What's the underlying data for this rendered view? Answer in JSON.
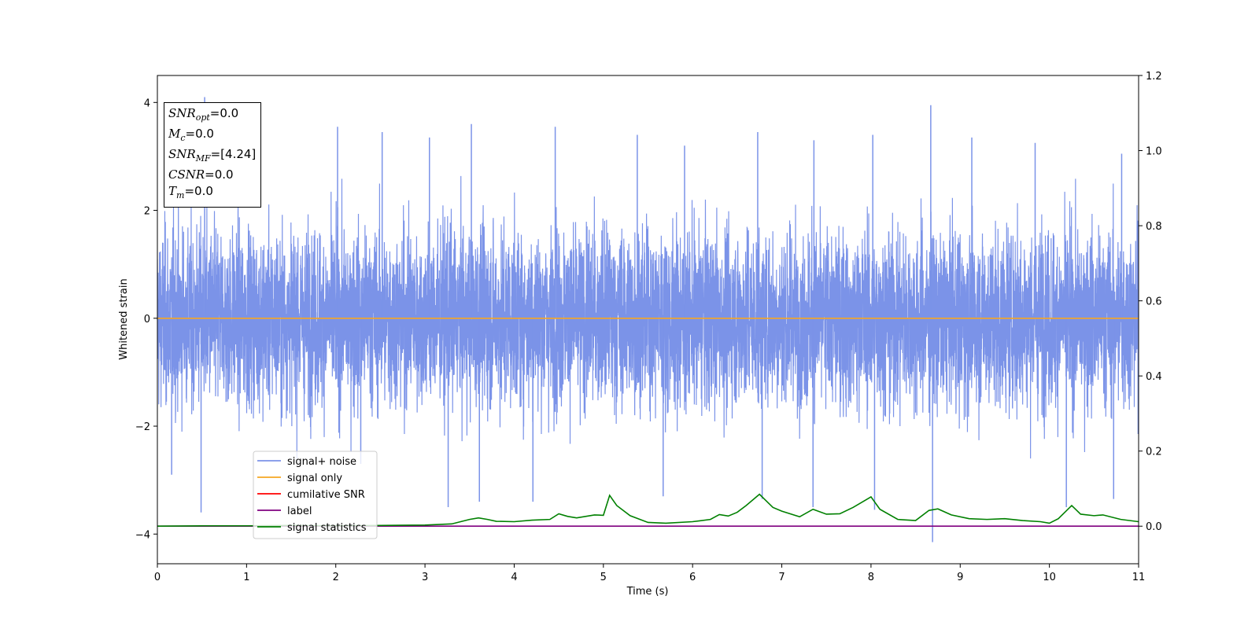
{
  "chart_data": {
    "type": "line",
    "xlabel": "Time (s)",
    "ylabel": "Whitened strain",
    "xlim": [
      0,
      11
    ],
    "ylim": [
      -4.55,
      4.5
    ],
    "y2lim": [
      -0.1,
      1.2
    ],
    "x_ticks": [
      "0",
      "1",
      "2",
      "3",
      "4",
      "5",
      "6",
      "7",
      "8",
      "9",
      "10",
      "11"
    ],
    "y_ticks": [
      "4",
      "2",
      "0",
      "−2",
      "−4"
    ],
    "y2_ticks": [
      "1.2",
      "1.0",
      "0.8",
      "0.6",
      "0.4",
      "0.2",
      "0.0"
    ],
    "grid": false,
    "legend_position": "lower-left",
    "info_box": {
      "snr_opt": {
        "symbol": "SNR",
        "sub": "opt",
        "value": "=0.0"
      },
      "mc": {
        "symbol": "M",
        "sub": "c",
        "value": "=0.0"
      },
      "snr_mf": {
        "symbol": "SNR",
        "sub": "MF",
        "value": "=[4.24]"
      },
      "csnr": {
        "symbol": "CSNR",
        "value": "=0.0"
      },
      "tm": {
        "symbol": "T",
        "sub": "m",
        "value": "=0.0"
      }
    },
    "series": [
      {
        "name": "signal+ noise",
        "color": "#7b93e8",
        "axis": "left",
        "noise_sigma": 0.82,
        "spikes": [
          [
            0.49,
            -3.6
          ],
          [
            0.53,
            4.1
          ],
          [
            0.16,
            -2.9
          ],
          [
            2.02,
            3.55
          ],
          [
            2.28,
            -2.7
          ],
          [
            2.52,
            3.45
          ],
          [
            3.05,
            3.35
          ],
          [
            3.26,
            -3.5
          ],
          [
            3.52,
            3.6
          ],
          [
            3.61,
            -3.4
          ],
          [
            4.21,
            -3.4
          ],
          [
            4.46,
            3.55
          ],
          [
            5.38,
            3.4
          ],
          [
            5.67,
            -3.3
          ],
          [
            5.91,
            3.2
          ],
          [
            6.73,
            3.45
          ],
          [
            6.78,
            -3.35
          ],
          [
            7.36,
            3.3
          ],
          [
            7.35,
            -3.5
          ],
          [
            8.02,
            3.4
          ],
          [
            8.04,
            -3.55
          ],
          [
            8.67,
            3.95
          ],
          [
            8.69,
            -4.15
          ],
          [
            9.13,
            3.35
          ],
          [
            9.84,
            3.25
          ],
          [
            10.19,
            -3.5
          ],
          [
            10.72,
            -3.35
          ],
          [
            10.81,
            3.05
          ]
        ]
      },
      {
        "name": "signal only",
        "color": "#f5a623",
        "axis": "left",
        "values": [
          [
            0,
            0
          ],
          [
            11,
            0
          ]
        ]
      },
      {
        "name": "cumilative SNR",
        "color": "#ff0000",
        "axis": "right",
        "values": []
      },
      {
        "name": "label",
        "color": "#800080",
        "axis": "right",
        "values": [
          [
            0,
            0.0
          ],
          [
            11,
            0.0
          ]
        ]
      },
      {
        "name": "signal statistics",
        "color": "#008000",
        "axis": "right",
        "values": [
          [
            0,
            0.0
          ],
          [
            0.5,
            0.001
          ],
          [
            1.0,
            0.001
          ],
          [
            1.5,
            0.002
          ],
          [
            2.0,
            0.001
          ],
          [
            2.5,
            0.002
          ],
          [
            3.0,
            0.003
          ],
          [
            3.3,
            0.006
          ],
          [
            3.5,
            0.018
          ],
          [
            3.6,
            0.022
          ],
          [
            3.7,
            0.018
          ],
          [
            3.8,
            0.013
          ],
          [
            4.0,
            0.012
          ],
          [
            4.2,
            0.016
          ],
          [
            4.4,
            0.018
          ],
          [
            4.5,
            0.033
          ],
          [
            4.6,
            0.026
          ],
          [
            4.7,
            0.022
          ],
          [
            4.9,
            0.03
          ],
          [
            5.0,
            0.029
          ],
          [
            5.07,
            0.082
          ],
          [
            5.15,
            0.055
          ],
          [
            5.3,
            0.028
          ],
          [
            5.5,
            0.01
          ],
          [
            5.7,
            0.008
          ],
          [
            6.0,
            0.012
          ],
          [
            6.2,
            0.018
          ],
          [
            6.3,
            0.031
          ],
          [
            6.4,
            0.027
          ],
          [
            6.5,
            0.037
          ],
          [
            6.6,
            0.055
          ],
          [
            6.75,
            0.085
          ],
          [
            6.9,
            0.05
          ],
          [
            7.0,
            0.04
          ],
          [
            7.2,
            0.025
          ],
          [
            7.35,
            0.045
          ],
          [
            7.5,
            0.032
          ],
          [
            7.65,
            0.033
          ],
          [
            7.8,
            0.05
          ],
          [
            8.0,
            0.078
          ],
          [
            8.1,
            0.045
          ],
          [
            8.3,
            0.018
          ],
          [
            8.5,
            0.015
          ],
          [
            8.65,
            0.042
          ],
          [
            8.75,
            0.046
          ],
          [
            8.9,
            0.03
          ],
          [
            9.1,
            0.02
          ],
          [
            9.3,
            0.018
          ],
          [
            9.5,
            0.02
          ],
          [
            9.7,
            0.015
          ],
          [
            9.9,
            0.012
          ],
          [
            10.0,
            0.008
          ],
          [
            10.1,
            0.02
          ],
          [
            10.25,
            0.055
          ],
          [
            10.35,
            0.032
          ],
          [
            10.5,
            0.028
          ],
          [
            10.6,
            0.03
          ],
          [
            10.8,
            0.018
          ],
          [
            11.0,
            0.012
          ]
        ]
      }
    ]
  }
}
